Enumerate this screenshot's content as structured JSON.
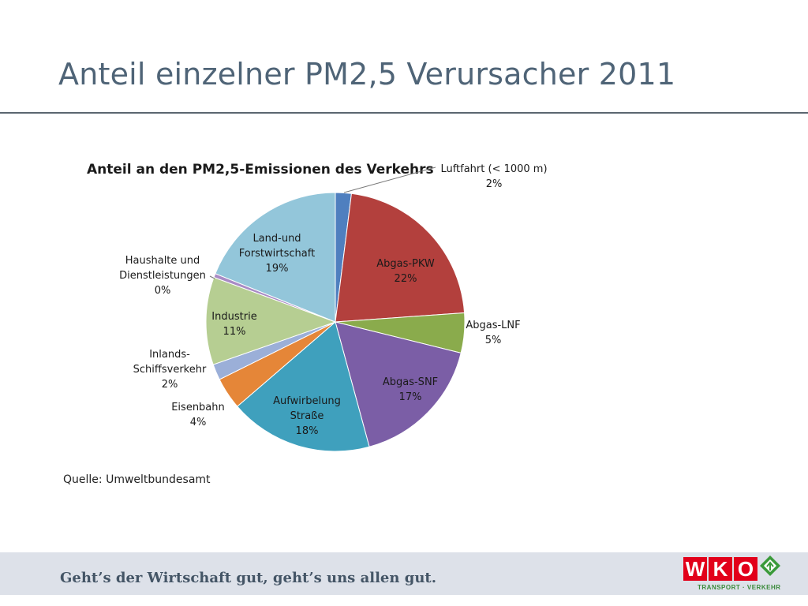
{
  "slide": {
    "title": "Anteil einzelner PM2,5 Verursacher 2011",
    "source": "Quelle: Umweltbundesamt"
  },
  "footer": {
    "slogan": "Geht’s der Wirtschaft gut, geht’s uns allen gut.",
    "logo_letters": [
      "W",
      "K",
      "O"
    ],
    "logo_subtitle": "TRANSPORT · VERKEHR",
    "logo_colors": {
      "box": "#e2001a",
      "mark": "#3a9a3a"
    }
  },
  "chart_data": {
    "type": "pie",
    "title": "Anteil an den PM2,5-Emissionen des Verkehrs",
    "slices": [
      {
        "label": "Luftfahrt (< 1000 m)",
        "value": 2,
        "value_label": "2%",
        "color": "#4f7fbf"
      },
      {
        "label": "Abgas-PKW",
        "value": 22,
        "value_label": "22%",
        "color": "#b3403d"
      },
      {
        "label": "Abgas-LNF",
        "value": 5,
        "value_label": "5%",
        "color": "#8aab4c"
      },
      {
        "label": "Abgas-SNF",
        "value": 17,
        "value_label": "17%",
        "color": "#7b5ea6"
      },
      {
        "label": "Aufwirbelung Straße",
        "value": 18,
        "value_label": "18%",
        "color": "#3fa0bd"
      },
      {
        "label": "Eisenbahn",
        "value": 4,
        "value_label": "4%",
        "color": "#e58638"
      },
      {
        "label": "Inlands-Schiffsverkehr",
        "value": 2,
        "value_label": "2%",
        "color": "#9bafd8"
      },
      {
        "label": "Industrie",
        "value": 11,
        "value_label": "11%",
        "color": "#b6ce92"
      },
      {
        "label": "Haushalte und Dienstleistungen",
        "value": 0,
        "value_label": "0%",
        "color": "#a98bc5"
      },
      {
        "label": "Land-und Forstwirtschaft",
        "value": 19,
        "value_label": "19%",
        "color": "#93c6da"
      }
    ]
  }
}
